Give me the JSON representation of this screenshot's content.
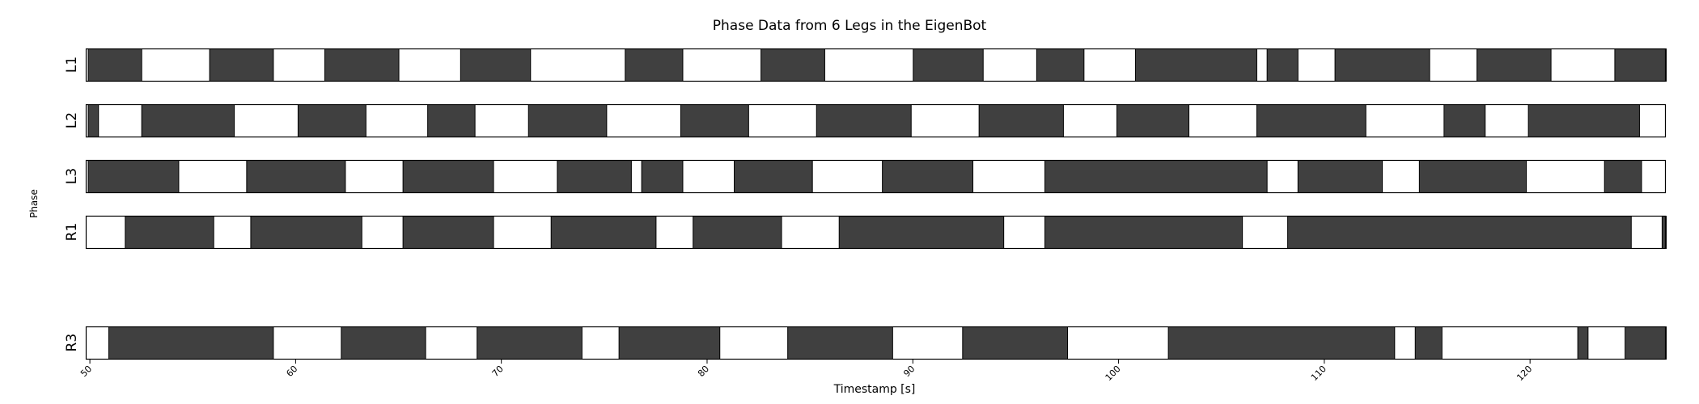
{
  "chart_data": {
    "type": "broken_barh",
    "title": "Phase Data from 6 Legs in the EigenBot",
    "xlabel": "Timestamp [s]",
    "ylabel": "Phase",
    "xlim": [
      49.8,
      126.6
    ],
    "xticks": [
      50,
      60,
      70,
      80,
      90,
      100,
      110,
      120
    ],
    "xtick_labels": [
      "50",
      "60",
      "70",
      "80",
      "90",
      "100",
      "110",
      "120"
    ],
    "grid": false,
    "colors": {
      "stance": "#404040",
      "swing": "#ffffff",
      "edge": "#000000"
    },
    "legs": [
      {
        "name": "L1",
        "stance": [
          [
            49.9,
            52.5
          ],
          [
            55.8,
            58.9
          ],
          [
            61.4,
            65.0
          ],
          [
            68.0,
            71.4
          ],
          [
            76.0,
            78.8
          ],
          [
            82.6,
            85.7
          ],
          [
            90.0,
            93.4
          ],
          [
            96.0,
            98.3
          ],
          [
            100.8,
            106.7
          ],
          [
            107.2,
            108.7
          ],
          [
            110.5,
            115.1
          ],
          [
            117.4,
            121.0
          ],
          [
            124.1,
            126.6
          ]
        ]
      },
      {
        "name": "L2",
        "stance": [
          [
            49.9,
            50.4
          ],
          [
            52.5,
            57.0
          ],
          [
            60.1,
            63.4
          ],
          [
            66.4,
            68.7
          ],
          [
            71.3,
            75.1
          ],
          [
            78.7,
            82.0
          ],
          [
            85.3,
            89.9
          ],
          [
            93.2,
            97.3
          ],
          [
            99.9,
            103.4
          ],
          [
            106.7,
            112.0
          ],
          [
            115.8,
            117.8
          ],
          [
            119.9,
            125.3
          ]
        ]
      },
      {
        "name": "L3",
        "stance": [
          [
            49.9,
            54.3
          ],
          [
            57.6,
            62.4
          ],
          [
            65.2,
            69.6
          ],
          [
            72.7,
            76.3
          ],
          [
            76.8,
            78.8
          ],
          [
            81.3,
            85.1
          ],
          [
            88.5,
            92.9
          ],
          [
            96.4,
            107.2
          ],
          [
            108.7,
            112.8
          ],
          [
            114.6,
            119.8
          ],
          [
            123.6,
            125.4
          ]
        ]
      },
      {
        "name": "R1",
        "stance": [
          [
            51.7,
            56.0
          ],
          [
            57.8,
            63.2
          ],
          [
            65.2,
            69.6
          ],
          [
            72.4,
            77.5
          ],
          [
            79.3,
            83.6
          ],
          [
            86.4,
            94.4
          ],
          [
            96.4,
            106.0
          ],
          [
            108.2,
            124.9
          ],
          [
            126.4,
            126.6
          ]
        ]
      },
      {
        "name": "R3",
        "stance": [
          [
            50.9,
            58.9
          ],
          [
            62.2,
            66.3
          ],
          [
            68.8,
            73.9
          ],
          [
            75.7,
            80.6
          ],
          [
            83.9,
            89.0
          ],
          [
            92.4,
            97.5
          ],
          [
            102.4,
            113.4
          ],
          [
            114.4,
            115.7
          ],
          [
            122.3,
            122.8
          ],
          [
            124.6,
            126.6
          ]
        ]
      }
    ]
  }
}
